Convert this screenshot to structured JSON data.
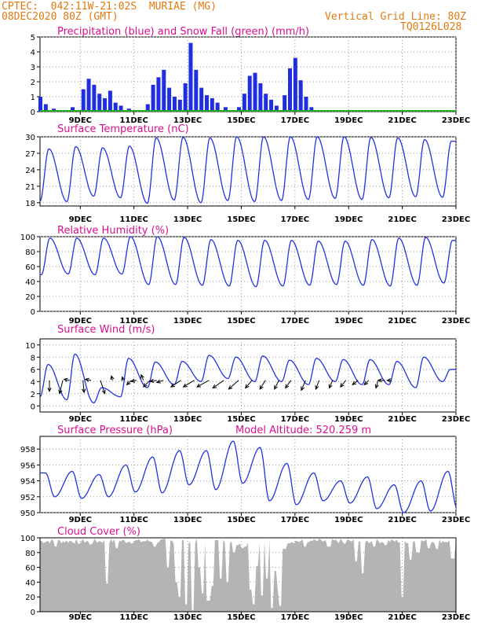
{
  "header": {
    "line1": "CPTEC:  042:11W-21:02S  MURIAE (MG)",
    "line2": "08DEC2020 80Z (GMT)",
    "grid_note": "Vertical Grid Line: 80Z",
    "code": "TQ0126L028",
    "color": "#e07a10"
  },
  "colors": {
    "title": "#d6108e",
    "line": "#2233dd",
    "precip": "#1f2ee0",
    "snow": "#22aa22",
    "cloud": "#b4b4b4",
    "arrow": "#000000"
  },
  "x_tick_labels": [
    "9DEC",
    "11DEC",
    "13DEC",
    "15DEC",
    "17DEC",
    "19DEC",
    "21DEC",
    "23DEC"
  ],
  "chart_data": [
    {
      "type": "bar",
      "title": "Precipitation (blue) and Snow Fall (green) (mm/h)",
      "ylim": [
        0,
        5
      ],
      "yticks": [
        "0",
        "1",
        "2",
        "3",
        "4",
        "5"
      ],
      "series": [
        {
          "name": "Precipitation",
          "points": [
            [
              0.0,
              1.0
            ],
            [
              0.2,
              0.5
            ],
            [
              0.5,
              0.2
            ],
            [
              1.2,
              0.3
            ],
            [
              1.6,
              1.5
            ],
            [
              1.8,
              2.2
            ],
            [
              2.0,
              1.8
            ],
            [
              2.2,
              1.2
            ],
            [
              2.4,
              0.9
            ],
            [
              2.6,
              1.4
            ],
            [
              2.8,
              0.6
            ],
            [
              3.0,
              0.4
            ],
            [
              3.3,
              0.2
            ],
            [
              4.0,
              0.5
            ],
            [
              4.2,
              1.8
            ],
            [
              4.4,
              2.3
            ],
            [
              4.6,
              2.8
            ],
            [
              4.8,
              1.6
            ],
            [
              5.0,
              1.0
            ],
            [
              5.2,
              0.8
            ],
            [
              5.4,
              1.9
            ],
            [
              5.6,
              4.6
            ],
            [
              5.8,
              2.8
            ],
            [
              6.0,
              1.6
            ],
            [
              6.2,
              1.1
            ],
            [
              6.4,
              0.9
            ],
            [
              6.6,
              0.6
            ],
            [
              6.9,
              0.3
            ],
            [
              7.4,
              0.3
            ],
            [
              7.6,
              1.2
            ],
            [
              7.8,
              2.4
            ],
            [
              8.0,
              2.6
            ],
            [
              8.2,
              1.9
            ],
            [
              8.4,
              1.2
            ],
            [
              8.6,
              0.8
            ],
            [
              8.8,
              0.4
            ],
            [
              9.1,
              1.1
            ],
            [
              9.3,
              2.9
            ],
            [
              9.5,
              3.6
            ],
            [
              9.7,
              2.1
            ],
            [
              9.9,
              1.0
            ],
            [
              10.1,
              0.3
            ]
          ]
        },
        {
          "name": "Snow Fall",
          "values": []
        }
      ]
    },
    {
      "type": "line",
      "title": "Surface Temperature (nC)",
      "ylim": [
        17.4,
        30
      ],
      "yticks": [
        "18",
        "21",
        "24",
        "27",
        "30"
      ],
      "daily": [
        [
          18.3,
          27.8
        ],
        [
          18.2,
          28.2
        ],
        [
          19.2,
          28.0
        ],
        [
          18.9,
          28.3
        ],
        [
          17.9,
          29.8
        ],
        [
          18.5,
          29.9
        ],
        [
          18.0,
          29.8
        ],
        [
          18.4,
          30.0
        ],
        [
          18.2,
          30.0
        ],
        [
          18.4,
          30.0
        ],
        [
          18.6,
          30.0
        ],
        [
          18.8,
          30.0
        ],
        [
          18.6,
          29.9
        ],
        [
          18.9,
          29.8
        ],
        [
          19.1,
          29.5
        ],
        [
          19.0,
          29.2
        ]
      ]
    },
    {
      "type": "line",
      "title": "Relative Humidity (%)",
      "ylim": [
        0,
        100
      ],
      "yticks": [
        "0",
        "20",
        "40",
        "60",
        "80",
        "100"
      ],
      "daily": [
        [
          98,
          49
        ],
        [
          98,
          50
        ],
        [
          98,
          49
        ],
        [
          100,
          50
        ],
        [
          100,
          36
        ],
        [
          99,
          36
        ],
        [
          96,
          35
        ],
        [
          95,
          34
        ],
        [
          95,
          33
        ],
        [
          95,
          34
        ],
        [
          94,
          35
        ],
        [
          94,
          36
        ],
        [
          96,
          35
        ],
        [
          98,
          34
        ],
        [
          99,
          35
        ],
        [
          95,
          38
        ]
      ]
    },
    {
      "type": "line",
      "title": "Surface Wind (m/s)",
      "ylim": [
        -1,
        11
      ],
      "yticks": [
        "0",
        "2",
        "4",
        "6",
        "8",
        "10"
      ],
      "daily": [
        [
          1.5,
          6.8
        ],
        [
          1.0,
          8.5
        ],
        [
          0.5,
          3.0
        ],
        [
          1.5,
          7.8
        ],
        [
          3.0,
          7.2
        ],
        [
          3.5,
          7.3
        ],
        [
          4.0,
          8.3
        ],
        [
          4.5,
          8.0
        ],
        [
          4.0,
          8.2
        ],
        [
          4.0,
          7.5
        ],
        [
          3.5,
          7.8
        ],
        [
          4.0,
          7.6
        ],
        [
          3.5,
          7.6
        ],
        [
          3.5,
          7.3
        ],
        [
          3.0,
          8.0
        ],
        [
          4.0,
          6.0
        ]
      ],
      "vectors": [
        [
          0.5,
          0,
          -1.0
        ],
        [
          1.5,
          -0.3,
          -1.2
        ],
        [
          2.0,
          -0.5,
          0.1
        ],
        [
          3.0,
          0.1,
          -1.1
        ],
        [
          3.6,
          -0.5,
          0.1
        ],
        [
          4.3,
          0.4,
          -1.2
        ],
        [
          5.2,
          -0.1,
          0.4
        ],
        [
          6.0,
          -0.1,
          0.3
        ],
        [
          6.6,
          -0.4,
          -0.4
        ],
        [
          7.0,
          -0.5,
          -0.1
        ],
        [
          7.5,
          -0.2,
          0.5
        ],
        [
          8.0,
          -0.6,
          -0.6
        ],
        [
          8.5,
          -0.6,
          -0.1
        ],
        [
          9.0,
          -0.6,
          -0.2
        ],
        [
          10.3,
          -0.9,
          -0.6
        ],
        [
          11.3,
          -1.0,
          -0.6
        ],
        [
          12.4,
          -1.1,
          -0.6
        ],
        [
          13.5,
          -1.0,
          -0.7
        ],
        [
          14.6,
          -0.9,
          -0.8
        ],
        [
          15.6,
          -0.6,
          -0.7
        ],
        [
          16.6,
          -0.5,
          -0.8
        ],
        [
          17.6,
          -0.4,
          -0.8
        ],
        [
          18.5,
          -0.5,
          -0.7
        ],
        [
          19.6,
          -0.4,
          -0.9
        ],
        [
          20.6,
          -0.3,
          -0.8
        ],
        [
          21.6,
          -0.3,
          -0.7
        ],
        [
          22.6,
          -0.5,
          -0.6
        ],
        [
          23.5,
          -0.5,
          -0.4
        ],
        [
          24.3,
          -0.4,
          -0.4
        ],
        [
          25.0,
          -0.2,
          -0.7
        ],
        [
          25.5,
          -0.6,
          0.0
        ],
        [
          26.0,
          -0.4,
          0.0
        ]
      ]
    },
    {
      "type": "line",
      "title": "Surface Pressure (hPa)",
      "annotation": "Model Altitude: 520.259  m",
      "ylim": [
        950,
        959.6
      ],
      "yticks": [
        "950",
        "952",
        "954",
        "956",
        "958"
      ],
      "daily": [
        [
          955.0,
          952.0
        ],
        [
          955.2,
          951.8
        ],
        [
          954.8,
          952.0
        ],
        [
          956.0,
          952.6
        ],
        [
          957.0,
          952.5
        ],
        [
          957.8,
          953.5
        ],
        [
          957.8,
          952.9
        ],
        [
          959.0,
          953.7
        ],
        [
          958.2,
          951.5
        ],
        [
          956.2,
          951.0
        ],
        [
          955.0,
          951.5
        ],
        [
          954.0,
          951.2
        ],
        [
          954.5,
          950.5
        ],
        [
          953.5,
          950.0
        ],
        [
          954.0,
          950.2
        ],
        [
          955.2,
          950.5
        ],
        [
          955.5,
          950.5
        ]
      ]
    },
    {
      "type": "area",
      "title": "Cloud Cover (%)",
      "ylim": [
        0,
        100
      ],
      "yticks": [
        "0",
        "20",
        "40",
        "60",
        "80",
        "100"
      ],
      "dips": [
        [
          2.3,
          88
        ],
        [
          6.0,
          92
        ],
        [
          7.8,
          91
        ],
        [
          10.1,
          38
        ],
        [
          11.7,
          86
        ],
        [
          17.4,
          88
        ],
        [
          19.6,
          60
        ],
        [
          20.7,
          40
        ],
        [
          21.4,
          20
        ],
        [
          22.2,
          10
        ],
        [
          23.4,
          2
        ],
        [
          24.2,
          60
        ],
        [
          24.8,
          25
        ],
        [
          25.7,
          15
        ],
        [
          26.2,
          35
        ],
        [
          27.6,
          45
        ],
        [
          28.6,
          40
        ],
        [
          29.5,
          80
        ],
        [
          30.1,
          90
        ],
        [
          30.8,
          86
        ],
        [
          31.3,
          88
        ],
        [
          32.2,
          30
        ],
        [
          32.6,
          10
        ],
        [
          33.1,
          62
        ],
        [
          34.0,
          22
        ],
        [
          34.6,
          45
        ],
        [
          35.3,
          5
        ],
        [
          35.8,
          55
        ],
        [
          36.3,
          30
        ],
        [
          36.7,
          8
        ],
        [
          37.3,
          85
        ],
        [
          40.4,
          88
        ],
        [
          40.9,
          94
        ],
        [
          44.1,
          88
        ],
        [
          46.6,
          92
        ],
        [
          48.3,
          68
        ],
        [
          49.2,
          52
        ],
        [
          51.0,
          88
        ],
        [
          52.7,
          90
        ],
        [
          55.3,
          20
        ],
        [
          56.6,
          70
        ],
        [
          57.7,
          80
        ],
        [
          59.3,
          86
        ],
        [
          60.6,
          85
        ],
        [
          63.0,
          72
        ]
      ]
    }
  ]
}
